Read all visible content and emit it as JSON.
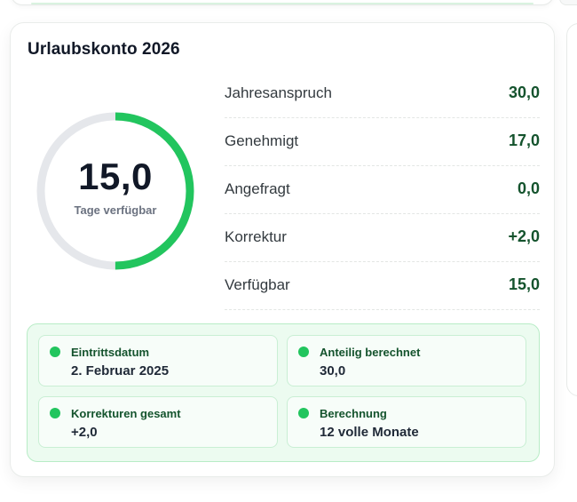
{
  "card": {
    "title": "Urlaubskonto 2026"
  },
  "ring": {
    "value": "15,0",
    "label": "Tage verfügbar",
    "fraction_available": 0.5,
    "color_progress": "#22c55e",
    "color_track": "#e5e7eb"
  },
  "stats": [
    {
      "label": "Jahresanspruch",
      "value": "30,0"
    },
    {
      "label": "Genehmigt",
      "value": "17,0"
    },
    {
      "label": "Angefragt",
      "value": "0,0"
    },
    {
      "label": "Korrektur",
      "value": "+2,0"
    },
    {
      "label": "Verfügbar",
      "value": "15,0"
    }
  ],
  "info": [
    {
      "label": "Eintrittsdatum",
      "value": "2. Februar 2025"
    },
    {
      "label": "Anteilig berechnet",
      "value": "30,0"
    },
    {
      "label": "Korrekturen gesamt",
      "value": "+2,0"
    },
    {
      "label": "Berechnung",
      "value": "12 volle Monate"
    }
  ],
  "colors": {
    "accent": "#22c55e",
    "value_text": "#14532d",
    "panel_bg": "#ecfbf0"
  }
}
